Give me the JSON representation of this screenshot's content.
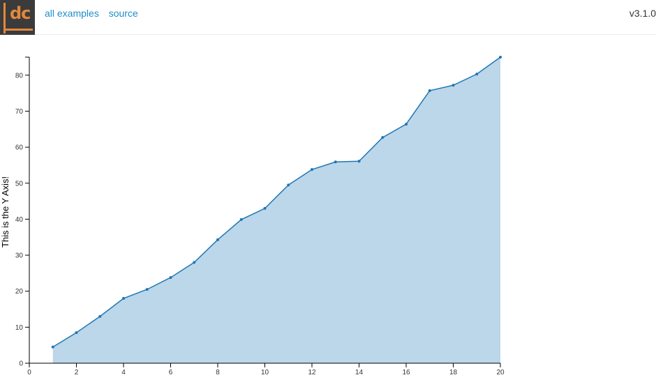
{
  "header": {
    "logo_text": "dc",
    "nav": [
      {
        "label": "all examples"
      },
      {
        "label": "source"
      }
    ],
    "version": "v3.1.0"
  },
  "colors": {
    "line": "#1f77b4",
    "area": "#bcd6ea",
    "logo_bg": "#3b3b3b",
    "logo_accent": "#e3883b",
    "link": "#1f8ec9"
  },
  "chart_data": {
    "type": "area",
    "xlabel": "",
    "ylabel": "This is the Y Axis!",
    "xlim": [
      0,
      20
    ],
    "ylim": [
      0,
      85
    ],
    "xticks": [
      0,
      2,
      4,
      6,
      8,
      10,
      12,
      14,
      16,
      18,
      20
    ],
    "yticks": [
      0,
      10,
      20,
      30,
      40,
      50,
      60,
      70,
      80
    ],
    "grid": false,
    "series": [
      {
        "x": [
          1,
          2,
          3,
          4,
          5,
          6,
          7,
          8,
          9,
          10,
          11,
          12,
          13,
          14,
          15,
          16,
          17,
          18,
          19,
          20
        ],
        "values": [
          4.5,
          8.5,
          13,
          18,
          20.5,
          23.8,
          28,
          34.3,
          39.9,
          43,
          49.5,
          53.8,
          55.9,
          56.1,
          62.7,
          66.4,
          75.7,
          77.2,
          80.3,
          85
        ]
      }
    ]
  }
}
